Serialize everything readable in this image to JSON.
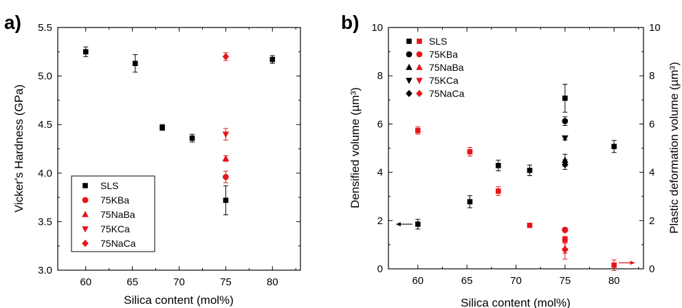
{
  "chart_data": [
    {
      "panel_label": "a)",
      "type": "scatter",
      "xlabel": "Silica content (mol%)",
      "ylabel": "Vicker's Hardness (GPa)",
      "xlim": [
        57,
        83
      ],
      "ylim": [
        3.0,
        5.5
      ],
      "xticks": [
        60,
        65,
        70,
        75,
        80
      ],
      "yticks": [
        3.0,
        3.5,
        4.0,
        4.5,
        5.0,
        5.5
      ],
      "xtick_labels": [
        "60",
        "65",
        "70",
        "75",
        "80"
      ],
      "ytick_labels": [
        "3.0",
        "3.5",
        "4.0",
        "4.5",
        "5.0",
        "5.5"
      ],
      "grid": false,
      "legend_position": "bottom-left",
      "series": [
        {
          "name": "SLS",
          "color": "#000000",
          "marker": "square",
          "points": [
            [
              60,
              5.25,
              0.05
            ],
            [
              65.3,
              5.13,
              0.09
            ],
            [
              68.2,
              4.47,
              0.03
            ],
            [
              71.4,
              4.36,
              0.04
            ],
            [
              75,
              3.72,
              0.15
            ],
            [
              80,
              5.17,
              0.04
            ]
          ]
        },
        {
          "name": "75KBa",
          "color": "#e8141b",
          "marker": "circle",
          "points": [
            [
              75,
              3.96,
              0.06
            ]
          ]
        },
        {
          "name": "75NaBa",
          "color": "#e8141b",
          "marker": "triangle-up",
          "points": [
            [
              75,
              4.15,
              0.03
            ]
          ]
        },
        {
          "name": "75KCa",
          "color": "#e8141b",
          "marker": "triangle-down",
          "points": [
            [
              75,
              4.4,
              0.06
            ]
          ]
        },
        {
          "name": "75NaCa",
          "color": "#e8141b",
          "marker": "diamond",
          "points": [
            [
              75,
              5.2,
              0.04
            ]
          ]
        }
      ]
    },
    {
      "panel_label": "b)",
      "type": "scatter",
      "xlabel": "Silica content (mol%)",
      "ylabel": "Densified volume (µm³)",
      "y2label": "Plastic deformation volume (µm³)",
      "xlim": [
        57,
        83
      ],
      "ylim": [
        0,
        10
      ],
      "y2lim": [
        0,
        10
      ],
      "xticks": [
        60,
        65,
        70,
        75,
        80
      ],
      "yticks": [
        0,
        2,
        4,
        6,
        8,
        10
      ],
      "xtick_labels": [
        "60",
        "65",
        "70",
        "75",
        "80"
      ],
      "ytick_labels": [
        "0",
        "2",
        "4",
        "6",
        "8",
        "10"
      ],
      "grid": false,
      "legend_position": "top-left",
      "legend": [
        "SLS",
        "75KBa",
        "75NaBa",
        "75KCa",
        "75NaCa"
      ],
      "series": [
        {
          "name": "SLS",
          "axis": "left",
          "color": "#000000",
          "marker": "square",
          "points": [
            [
              60,
              1.85,
              0.2
            ],
            [
              65.3,
              2.78,
              0.25
            ],
            [
              68.2,
              4.28,
              0.22
            ],
            [
              71.4,
              4.08,
              0.22
            ],
            [
              75,
              7.07,
              0.58
            ],
            [
              80,
              5.07,
              0.25
            ]
          ]
        },
        {
          "name": "75KBa",
          "axis": "left",
          "color": "#000000",
          "marker": "circle",
          "points": [
            [
              75,
              6.12,
              0.18
            ]
          ]
        },
        {
          "name": "75NaBa",
          "axis": "left",
          "color": "#000000",
          "marker": "triangle-up",
          "points": [
            [
              75,
              4.5,
              0.25
            ]
          ]
        },
        {
          "name": "75KCa",
          "axis": "left",
          "color": "#000000",
          "marker": "triangle-down",
          "points": [
            [
              75,
              5.42,
              0.08
            ]
          ]
        },
        {
          "name": "75NaCa",
          "axis": "left",
          "color": "#000000",
          "marker": "diamond",
          "points": [
            [
              75,
              4.32,
              0.2
            ]
          ]
        },
        {
          "name": "SLS",
          "axis": "right",
          "color": "#e8141b",
          "marker": "square",
          "points": [
            [
              60,
              5.73,
              0.15
            ],
            [
              65.3,
              4.85,
              0.18
            ],
            [
              68.2,
              3.22,
              0.18
            ],
            [
              71.4,
              1.8,
              0.0
            ],
            [
              75,
              1.22,
              0.12
            ],
            [
              80,
              0.15,
              0.22
            ]
          ]
        },
        {
          "name": "75KBa",
          "axis": "right",
          "color": "#e8141b",
          "marker": "circle",
          "points": [
            [
              75,
              1.62,
              0.08
            ]
          ]
        },
        {
          "name": "75NaBa",
          "axis": "right",
          "color": "#e8141b",
          "marker": "triangle-up",
          "points": [
            [
              75,
              0.85,
              0.2
            ]
          ]
        },
        {
          "name": "75KCa",
          "axis": "right",
          "color": "#e8141b",
          "marker": "triangle-down",
          "points": [
            [
              75,
              0.75,
              0.35
            ]
          ]
        },
        {
          "name": "75NaCa",
          "axis": "right",
          "color": "#e8141b",
          "marker": "diamond",
          "points": [
            [
              75,
              1.6,
              0.08
            ]
          ]
        }
      ],
      "annotations": [
        {
          "arrow": "left",
          "color": "#000000",
          "x": 58.6,
          "y": 1.85
        },
        {
          "arrow": "right",
          "color": "#e8141b",
          "x": 81.3,
          "y": 0.25
        }
      ]
    }
  ]
}
